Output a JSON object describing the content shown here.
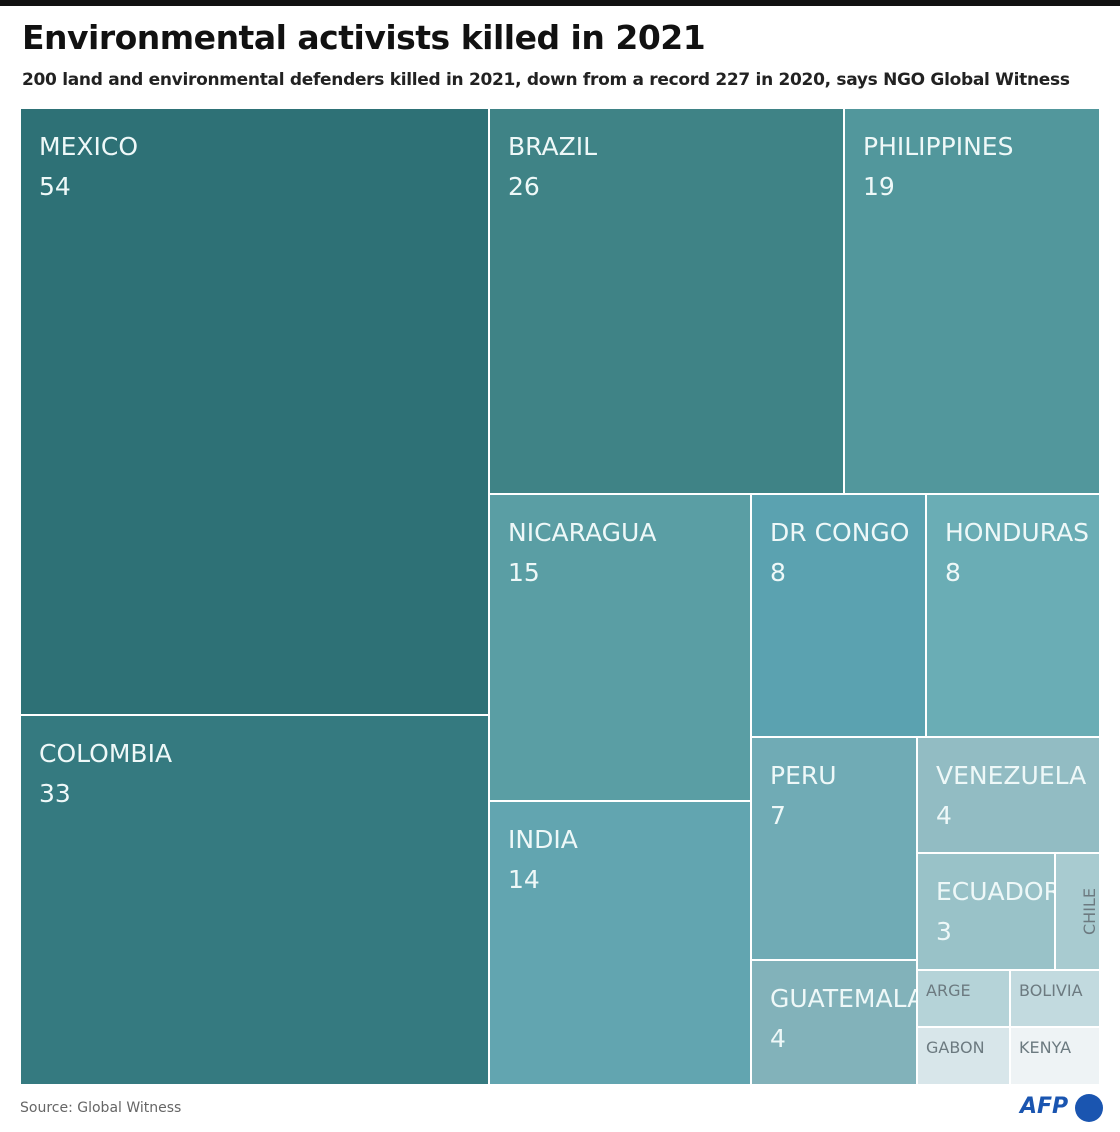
{
  "title": "Environmental activists killed in 2021",
  "subtitle": "200 land and environmental defenders killed in 2021, down from a record 227 in 2020, says NGO Global Witness",
  "source": "Source: Global Witness",
  "logo": "AFP",
  "chart_data": {
    "type": "treemap",
    "items": [
      {
        "name": "MEXICO",
        "value": 54,
        "label": "54",
        "color": "#2e7176"
      },
      {
        "name": "COLOMBIA",
        "value": 33,
        "label": "33",
        "color": "#357a80"
      },
      {
        "name": "BRAZIL",
        "value": 26,
        "label": "26",
        "color": "#3f8386"
      },
      {
        "name": "PHILIPPINES",
        "value": 19,
        "label": "19",
        "color": "#52979c"
      },
      {
        "name": "NICARAGUA",
        "value": 15,
        "label": "15",
        "color": "#5a9ea4"
      },
      {
        "name": "INDIA",
        "value": 14,
        "label": "14",
        "color": "#62a5b0"
      },
      {
        "name": "DR CONGO",
        "value": 8,
        "label": "8",
        "color": "#5ba2b0"
      },
      {
        "name": "HONDURAS",
        "value": 8,
        "label": "8",
        "color": "#6aadb5"
      },
      {
        "name": "PERU",
        "value": 7,
        "label": "7",
        "color": "#70abb5"
      },
      {
        "name": "GUATEMALA",
        "value": 4,
        "label": "4",
        "color": "#82b2ba"
      },
      {
        "name": "VENEZUELA",
        "value": 4,
        "label": "4",
        "color": "#92bcc3"
      },
      {
        "name": "ECUADOR",
        "value": 3,
        "label": "3",
        "color": "#99c2c8"
      },
      {
        "name": "CHILE",
        "value": 1,
        "color": "#a8cbd0"
      },
      {
        "name": "ARGE",
        "value": 1,
        "color": "#b5d3d8"
      },
      {
        "name": "BOLIVIA",
        "value": 1,
        "color": "#c2dadf"
      },
      {
        "name": "GABON",
        "value": 1,
        "color": "#d8e6ea"
      },
      {
        "name": "KENYA",
        "value": 1,
        "color": "#eef3f5"
      }
    ]
  }
}
